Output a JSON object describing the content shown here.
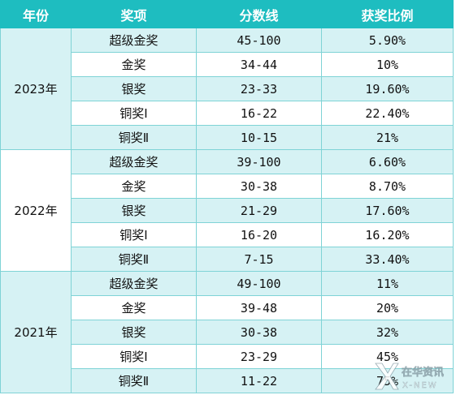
{
  "headers": [
    "年份",
    "奖项",
    "分数线",
    "获奖比例"
  ],
  "groups": [
    {
      "year": "2023年",
      "rows": [
        {
          "award": "超级金奖",
          "score": "45-100",
          "ratio": "5.90%"
        },
        {
          "award": "金奖",
          "score": "34-44",
          "ratio": "10%"
        },
        {
          "award": "银奖",
          "score": "23-33",
          "ratio": "19.60%"
        },
        {
          "award": "铜奖Ⅰ",
          "score": "16-22",
          "ratio": "22.40%"
        },
        {
          "award": "铜奖Ⅱ",
          "score": "10-15",
          "ratio": "21%"
        }
      ]
    },
    {
      "year": "2022年",
      "rows": [
        {
          "award": "超级金奖",
          "score": "39-100",
          "ratio": "6.60%"
        },
        {
          "award": "金奖",
          "score": "30-38",
          "ratio": "8.70%"
        },
        {
          "award": "银奖",
          "score": "21-29",
          "ratio": "17.60%"
        },
        {
          "award": "铜奖Ⅰ",
          "score": "16-20",
          "ratio": "16.20%"
        },
        {
          "award": "铜奖Ⅱ",
          "score": "7-15",
          "ratio": "33.40%"
        }
      ]
    },
    {
      "year": "2021年",
      "rows": [
        {
          "award": "超级金奖",
          "score": "49-100",
          "ratio": "11%"
        },
        {
          "award": "金奖",
          "score": "39-48",
          "ratio": "20%"
        },
        {
          "award": "银奖",
          "score": "30-38",
          "ratio": "32%"
        },
        {
          "award": "铜奖Ⅰ",
          "score": "23-29",
          "ratio": "45%"
        },
        {
          "award": "铜奖Ⅱ",
          "score": "11-22",
          "ratio": "75%"
        }
      ]
    }
  ],
  "watermark": {
    "line1": "在华资讯",
    "line2": "X-NEW"
  },
  "colors": {
    "header": "#1ebdc0",
    "shade": "#d6f2f4",
    "border": "#7fd3d6"
  }
}
